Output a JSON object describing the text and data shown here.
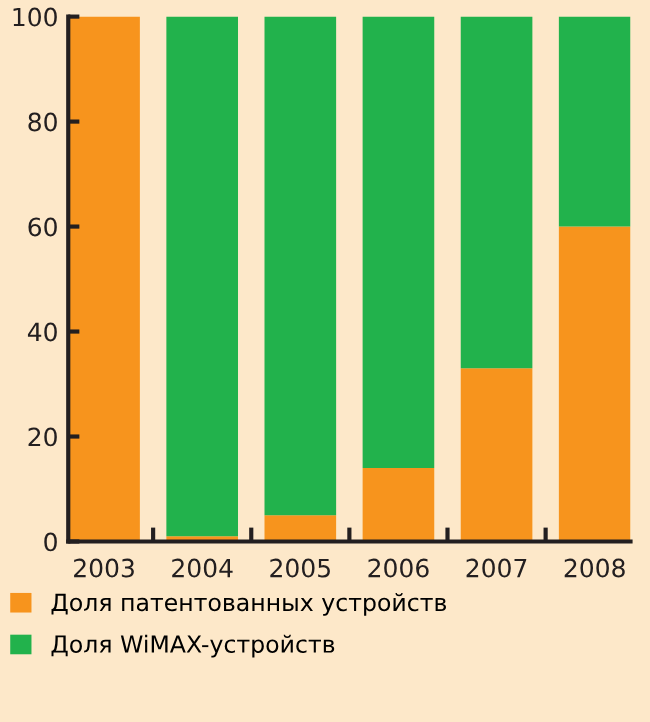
{
  "chart_data": {
    "type": "bar",
    "stacked": true,
    "categories": [
      "2003",
      "2004",
      "2005",
      "2006",
      "2007",
      "2008"
    ],
    "series": [
      {
        "name": "Доля патентованных устройств",
        "color": "#f7941d",
        "values": [
          100,
          1,
          5,
          14,
          33,
          60
        ]
      },
      {
        "name": "Доля WiMAX-устройств",
        "color": "#22b24c",
        "values": [
          0,
          99,
          95,
          86,
          67,
          40
        ]
      }
    ],
    "ylim": [
      0,
      100
    ],
    "yticks": [
      0,
      20,
      40,
      60,
      80,
      100
    ],
    "grid": false,
    "legend": "bottom"
  }
}
